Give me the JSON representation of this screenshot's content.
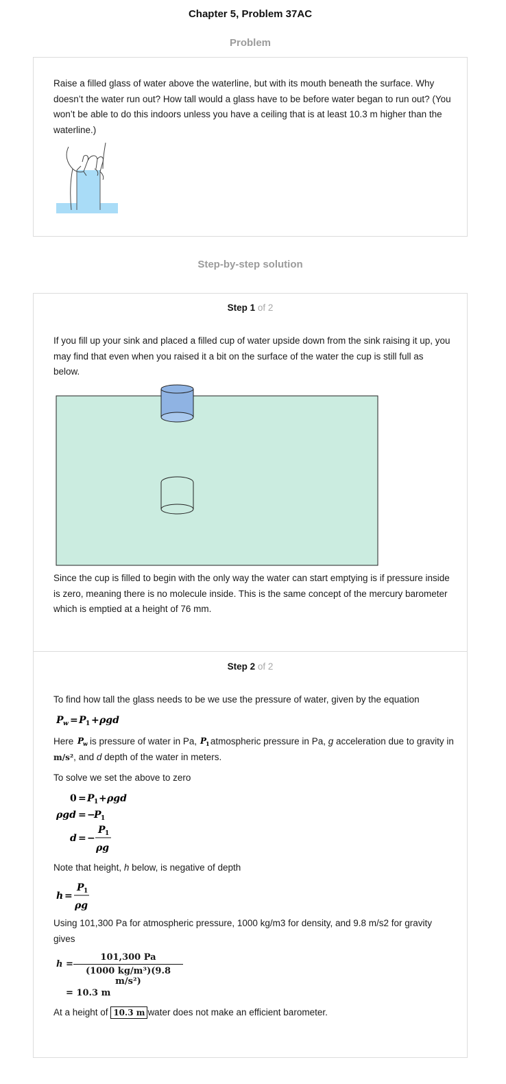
{
  "header": {
    "title": "Chapter 5, Problem 37AC",
    "problem_heading": "Problem",
    "solution_heading": "Step-by-step solution"
  },
  "problem": {
    "text": "Raise a filled glass of water above the waterline, but with its mouth beneath the surface. Why doesn’t the water run out? How tall would a glass have to be before water began to run out? (You won’t be able to do this indoors unless you have a ceiling that is at least 10.3 m higher than the waterline.)"
  },
  "step1": {
    "label": "Step 1",
    "of": "of 2",
    "intro": "If you fill up your sink and placed a filled cup of water upside down from the sink raising it up, you may find that even when you raised it a bit on the surface of the water the cup is still full as below.",
    "explanation": "Since the cup is filled to begin with the only way the water can start emptying is if pressure inside is zero, meaning there is no molecule inside. This is the same concept of the mercury barometer which is emptied at a height of 76 mm."
  },
  "step2": {
    "label": "Step 2",
    "of": "of 2",
    "intro": "To find how tall the glass needs to be we use the pressure of water, given by the equation",
    "eq_main": "P_w = P_1 + ρgd",
    "here_a": "Here",
    "here_b": "is pressure of water in Pa,",
    "here_c": "atmospheric pressure in Pa,",
    "here_g": "g",
    "here_d": "acceleration due to",
    "here_e": "gravity in",
    "here_unit": "m/s²",
    "here_f": ", and",
    "here_dvar": "d",
    "here_h": "depth of the water in meters.",
    "solve_line": "To solve we set the above to zero",
    "note_a": "Note that height,",
    "note_h": "h",
    "note_b": "below, is negative of depth",
    "using_line": "Using 101,300 Pa for atmospheric pressure, 1000 kg/m3 for density, and 9.8 m/s2 for gravity gives",
    "numerator": "101,300 Pa",
    "denominator": "(1000 kg/m³)(9.8 m/s²)",
    "result_line": "= 10.3 m",
    "final_a": "At a height of",
    "final_box": "10.3 m",
    "final_b": "water does not make an efficient barometer."
  },
  "colors": {
    "water_fill": "#cbece0",
    "cup_fill": "#8fb3e3",
    "glass_water": "#a9dcf7",
    "section_grey": "#9b9b9b"
  }
}
